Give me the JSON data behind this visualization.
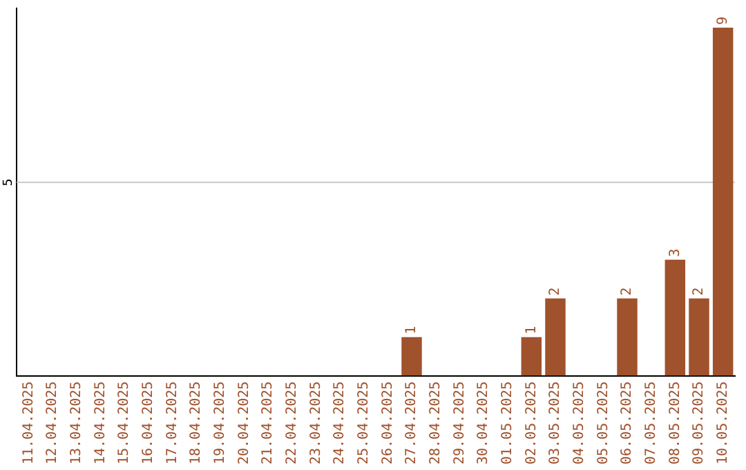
{
  "chart_data": {
    "type": "bar",
    "categories": [
      "11.04.2025",
      "12.04.2025",
      "13.04.2025",
      "14.04.2025",
      "15.04.2025",
      "16.04.2025",
      "17.04.2025",
      "18.04.2025",
      "19.04.2025",
      "20.04.2025",
      "21.04.2025",
      "22.04.2025",
      "23.04.2025",
      "24.04.2025",
      "25.04.2025",
      "26.04.2025",
      "27.04.2025",
      "28.04.2025",
      "29.04.2025",
      "30.04.2025",
      "01.05.2025",
      "02.05.2025",
      "03.05.2025",
      "04.05.2025",
      "05.05.2025",
      "06.05.2025",
      "07.05.2025",
      "08.05.2025",
      "09.05.2025",
      "10.05.2025"
    ],
    "values": [
      null,
      null,
      null,
      null,
      null,
      null,
      null,
      null,
      null,
      null,
      null,
      null,
      null,
      null,
      null,
      null,
      1,
      null,
      null,
      null,
      null,
      1,
      2,
      null,
      null,
      2,
      null,
      3,
      2,
      9
    ],
    "value_labels": [
      null,
      null,
      null,
      null,
      null,
      null,
      null,
      null,
      null,
      null,
      null,
      null,
      null,
      null,
      null,
      null,
      "1",
      null,
      null,
      null,
      null,
      "1",
      "2",
      null,
      null,
      "2",
      null,
      "3",
      "2",
      "9"
    ],
    "color": "#a0522d",
    "ylim": [
      0,
      9.5
    ],
    "legend": false,
    "ref_lines": [
      {
        "axis": "y",
        "value": 5,
        "label": "5",
        "color": "#c8c8c8"
      }
    ]
  }
}
